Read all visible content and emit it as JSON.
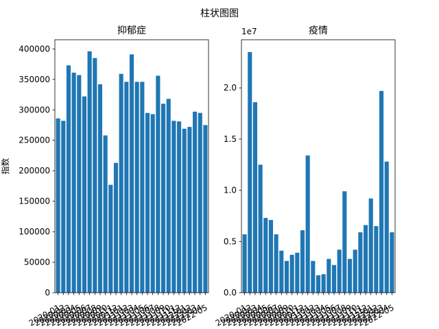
{
  "figure": {
    "suptitle": "柱状图图"
  },
  "chart_data": [
    {
      "type": "bar",
      "title": "抑郁症",
      "xlabel": "",
      "ylabel": "指数",
      "ylim": [
        0,
        415000
      ],
      "yticks": [
        0,
        50000,
        100000,
        150000,
        200000,
        250000,
        300000,
        350000,
        400000
      ],
      "ytick_labels": [
        "0",
        "50000",
        "100000",
        "150000",
        "200000",
        "250000",
        "300000",
        "350000",
        "400000"
      ],
      "x_tick_text": "2020-01 … 2022-05 (overlapping, 29 labels)",
      "categories": [
        "2020-01",
        "2020-02",
        "2020-03",
        "2020-04",
        "2020-05",
        "2020-06",
        "2020-07",
        "2020-08",
        "2020-09",
        "2020-10",
        "2020-11",
        "2020-12",
        "2021-01",
        "2021-02",
        "2021-03",
        "2021-04",
        "2021-05",
        "2021-06",
        "2021-07",
        "2021-08",
        "2021-09",
        "2021-10",
        "2021-11",
        "2021-12",
        "2022-01",
        "2022-02",
        "2022-03",
        "2022-04",
        "2022-05"
      ],
      "values": [
        286000,
        282000,
        373000,
        361000,
        357000,
        322000,
        396000,
        385000,
        342000,
        258000,
        177000,
        213000,
        359000,
        346000,
        391000,
        346000,
        346000,
        295000,
        293000,
        356000,
        310000,
        318000,
        282000,
        281000,
        269000,
        272000,
        297000,
        295000,
        275000
      ],
      "color": "#1f77b4"
    },
    {
      "type": "bar",
      "title": "疫情",
      "xlabel": "",
      "ylabel": "",
      "offset_label": "1e7",
      "ylim": [
        0,
        24700000
      ],
      "yticks": [
        0,
        5000000,
        10000000,
        15000000,
        20000000
      ],
      "ytick_labels": [
        "0.0",
        "0.5",
        "1.0",
        "1.5",
        "2.0"
      ],
      "x_tick_text": "2020-01 … 2022-05 (overlapping, 29 labels)",
      "categories": [
        "2020-01",
        "2020-02",
        "2020-03",
        "2020-04",
        "2020-05",
        "2020-06",
        "2020-07",
        "2020-08",
        "2020-09",
        "2020-10",
        "2020-11",
        "2020-12",
        "2021-01",
        "2021-02",
        "2021-03",
        "2021-04",
        "2021-05",
        "2021-06",
        "2021-07",
        "2021-08",
        "2021-09",
        "2021-10",
        "2021-11",
        "2021-12",
        "2022-01",
        "2022-02",
        "2022-03",
        "2022-04",
        "2022-05"
      ],
      "values": [
        5700000,
        23500000,
        18600000,
        12500000,
        7300000,
        7100000,
        5700000,
        4100000,
        3100000,
        3700000,
        3900000,
        6100000,
        13400000,
        3100000,
        1700000,
        1800000,
        3300000,
        2700000,
        4200000,
        9900000,
        3300000,
        4200000,
        5900000,
        6600000,
        9200000,
        6500000,
        19700000,
        12800000,
        5900000
      ],
      "color": "#1f77b4"
    }
  ]
}
